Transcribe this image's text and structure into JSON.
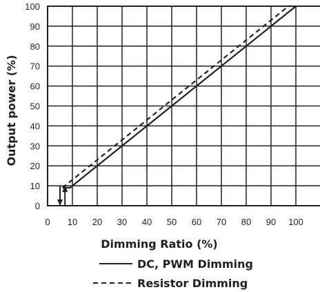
{
  "chart_data": {
    "type": "line",
    "title": "",
    "xlabel": "Dimming Ratio (%)",
    "ylabel": "Output power (%)",
    "xlim": [
      0,
      110
    ],
    "ylim": [
      0,
      100
    ],
    "x_ticks": [
      "0",
      "10",
      "20",
      "30",
      "40",
      "50",
      "60",
      "70",
      "80",
      "90",
      "100"
    ],
    "y_ticks": [
      "0",
      "10",
      "20",
      "30",
      "40",
      "50",
      "60",
      "70",
      "80",
      "90",
      "100"
    ],
    "grid": true,
    "legend_position": "below",
    "series": [
      {
        "name": "DC, PWM Dimming",
        "style": "solid",
        "color": "#231f20",
        "points": [
          [
            6,
            9
          ],
          [
            9,
            9
          ],
          [
            100,
            100
          ]
        ]
      },
      {
        "name": "Resistor Dimming",
        "style": "dashed",
        "color": "#231f20",
        "points": [
          [
            6,
            9
          ],
          [
            8,
            11
          ],
          [
            97,
            100
          ],
          [
            100,
            100
          ]
        ]
      }
    ],
    "annotations": [
      {
        "kind": "arrow-down",
        "x": 5,
        "y_from": 10,
        "y_to": 0
      },
      {
        "kind": "arrow-up",
        "x": 7,
        "y_from": 0,
        "y_to": 10
      }
    ]
  }
}
